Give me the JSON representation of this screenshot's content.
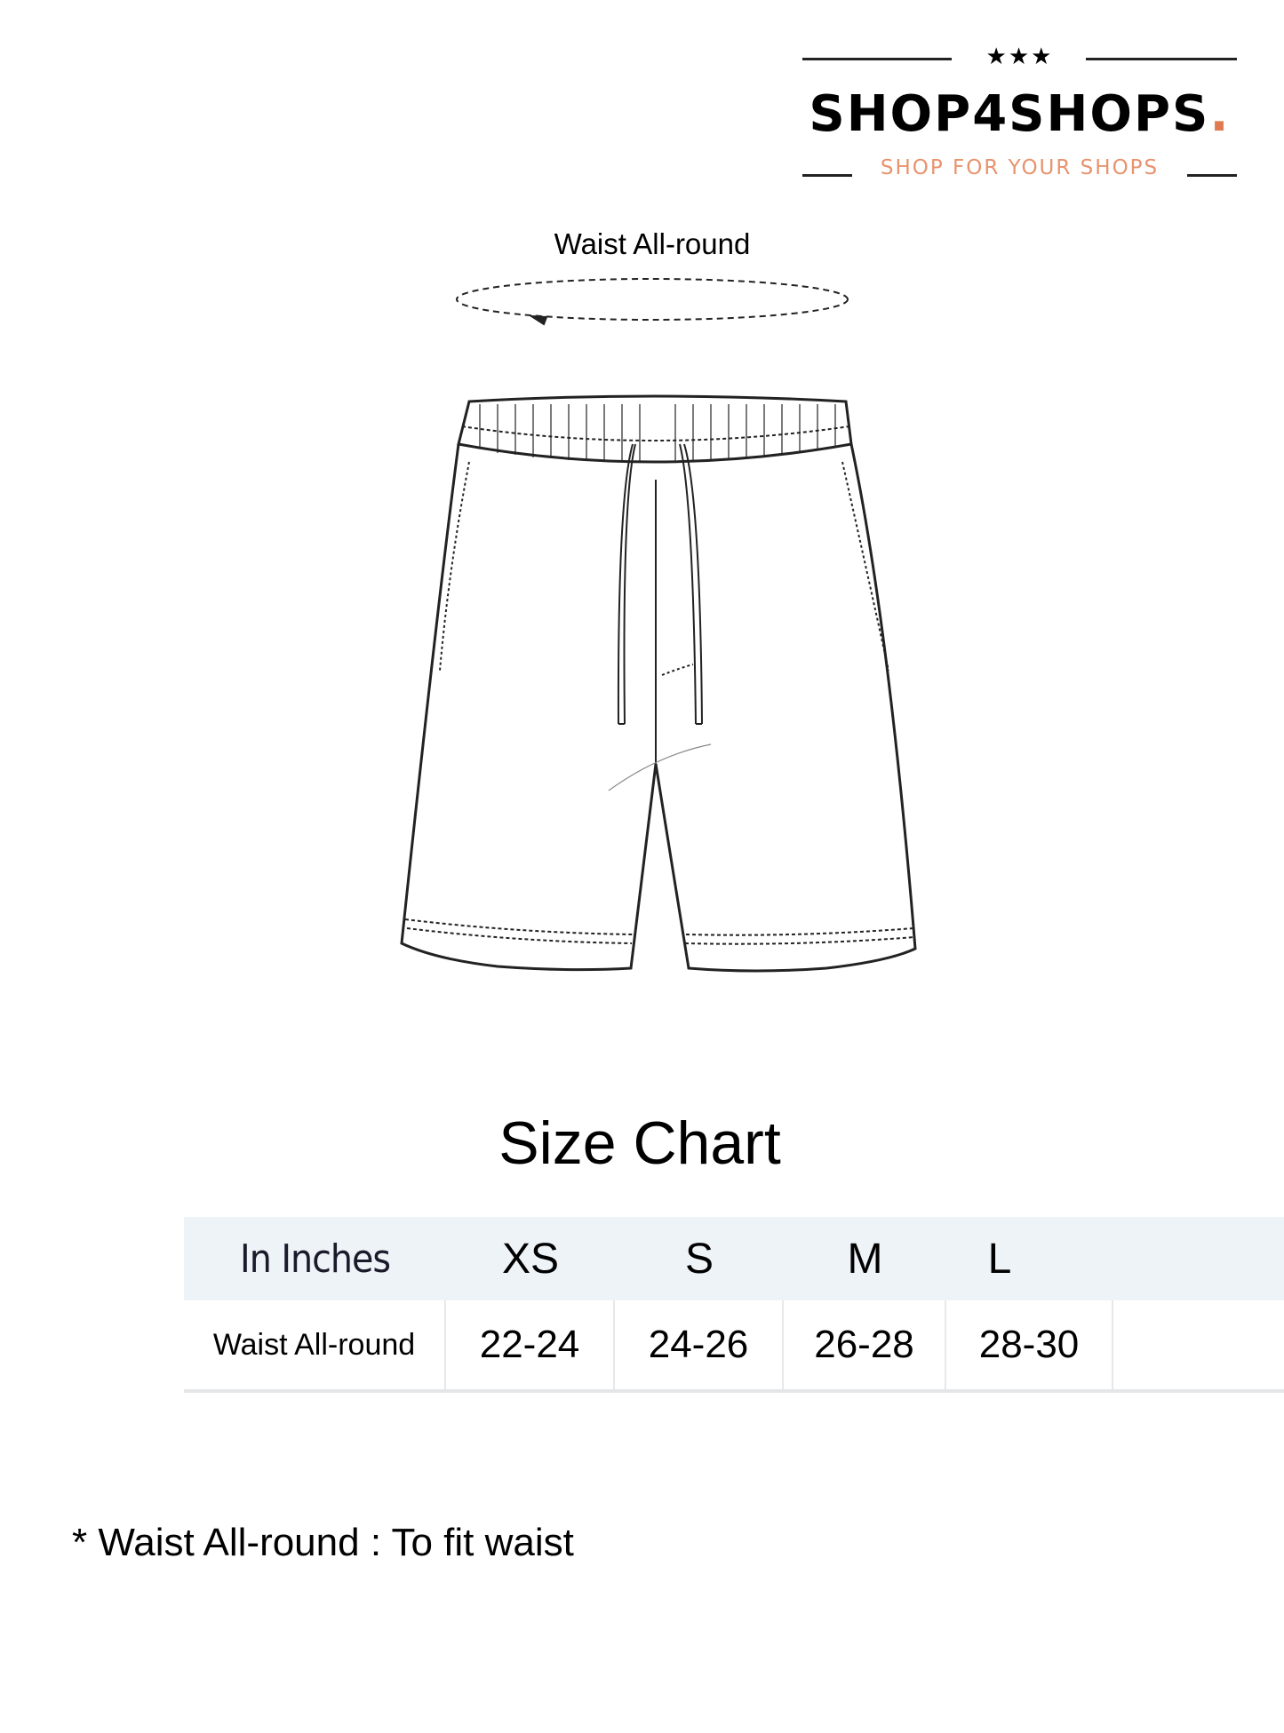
{
  "logo": {
    "stars": "★★★",
    "brand": "SHOP4SHOPS",
    "brand_dot": ".",
    "tagline": "SHOP FOR YOUR SHOPS",
    "accent_color": "#e07a50"
  },
  "diagram": {
    "waist_label": "Waist All-round"
  },
  "title": "Size Chart",
  "table": {
    "header": [
      "In Inches",
      "XS",
      "S",
      "M",
      "L",
      ""
    ],
    "rows": [
      [
        "Waist All-round",
        "22-24",
        "24-26",
        "26-28",
        "28-30",
        ""
      ]
    ]
  },
  "note": "* Waist All-round : To fit waist"
}
